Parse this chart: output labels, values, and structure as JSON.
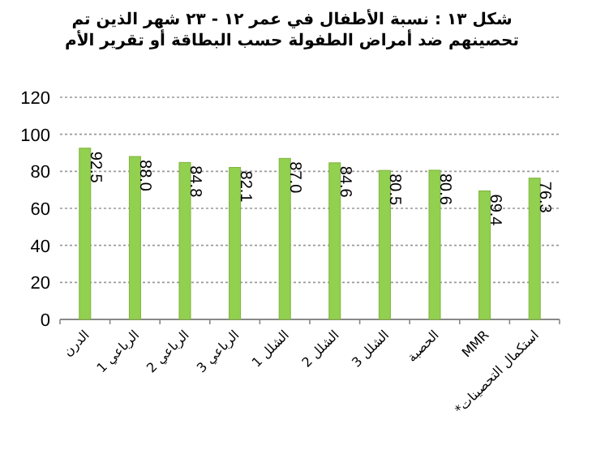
{
  "chart_data": {
    "type": "bar",
    "title": "شكل ١٣ : نسبة الأطفال في عمر ١٢ - ٢٣ شهر الذين تم تحصينهم ضد أمراض الطفولة حسب البطاقة أو تقرير الأم",
    "categories": [
      "الدرن",
      "1 الرباعي",
      "2 الرباعي",
      "3 الرباعي",
      "1 الشلل",
      "2 الشلل",
      "3 الشلل",
      "الحصبة",
      "MMR",
      "*استكمال التحصينات"
    ],
    "values": [
      92.5,
      88.0,
      84.8,
      82.1,
      87.0,
      84.6,
      80.5,
      80.6,
      69.4,
      76.3
    ],
    "value_labels": [
      "92.5",
      "88.0",
      "84.8",
      "82.1",
      "87.0",
      "84.6",
      "80.5",
      "80.6",
      "69.4",
      "76.3"
    ],
    "color": "#92d050",
    "ylim": [
      0,
      120
    ],
    "yticks": [
      0,
      20,
      40,
      60,
      80,
      100,
      120
    ],
    "grid": "y"
  }
}
